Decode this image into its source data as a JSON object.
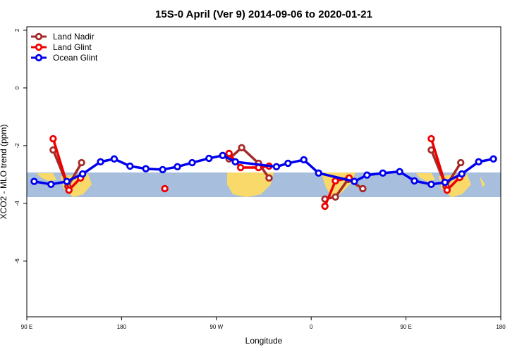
{
  "chart_data": {
    "type": "line",
    "title": "15S-0 April (Ver 9)   2014-09-06 to 2020-01-21",
    "x_label": "Longitude",
    "y_label": "XCO2 - MLO trend (ppm)",
    "xlim": [
      90,
      540
    ],
    "xticks": [
      {
        "value": 90,
        "label": "90 E"
      },
      180,
      {
        "value": 270,
        "label": "90 W"
      },
      {
        "value": 360,
        "label": "0"
      },
      {
        "value": 450,
        "label": "90 E"
      },
      {
        "value": 540,
        "label": "180"
      }
    ],
    "ylim": [
      -7.93,
      2.12
    ],
    "yticks": [
      2,
      0,
      -2,
      -4,
      -6
    ],
    "legend": "top-left",
    "series": [
      {
        "name": "Land Nadir",
        "color": "#a52a2a",
        "x": [
          115,
          129,
          142,
          null,
          282,
          294,
          310,
          320,
          null,
          373,
          383,
          395,
          409,
          null,
          474,
          488,
          502
        ],
        "values": [
          -2.15,
          -3.41,
          -2.59,
          null,
          -2.46,
          -2.07,
          -2.61,
          -3.12,
          null,
          -3.85,
          -3.78,
          -3.17,
          -3.49,
          null,
          -2.15,
          -3.41,
          -2.59
        ]
      },
      {
        "name": "Land Glint",
        "color": "#ee0000",
        "x": [
          115,
          130,
          141,
          null,
          221,
          null,
          282,
          293,
          310,
          320,
          null,
          373,
          383,
          396,
          null,
          474,
          489,
          501
        ],
        "values": [
          -1.76,
          -3.54,
          -3.12,
          null,
          -3.49,
          null,
          -2.27,
          -2.76,
          -2.76,
          -2.71,
          null,
          -4.1,
          -3.22,
          -3.12,
          null,
          -1.76,
          -3.54,
          -3.1
        ]
      },
      {
        "name": "Ocean Glint",
        "color": "#0000ee",
        "x": [
          97,
          113,
          128,
          143,
          160,
          173,
          188,
          203,
          219,
          233,
          247,
          263,
          276,
          288,
          327,
          338,
          353,
          367,
          401,
          413,
          428,
          444,
          458,
          474,
          487,
          503,
          519,
          533
        ],
        "values": [
          -3.24,
          -3.34,
          -3.24,
          -2.98,
          -2.56,
          -2.46,
          -2.71,
          -2.8,
          -2.83,
          -2.73,
          -2.59,
          -2.44,
          -2.34,
          -2.56,
          -2.73,
          -2.61,
          -2.49,
          -2.95,
          -3.24,
          -3.02,
          -2.95,
          -2.9,
          -3.22,
          -3.34,
          -3.27,
          -2.98,
          -2.56,
          -2.46
        ]
      }
    ]
  }
}
